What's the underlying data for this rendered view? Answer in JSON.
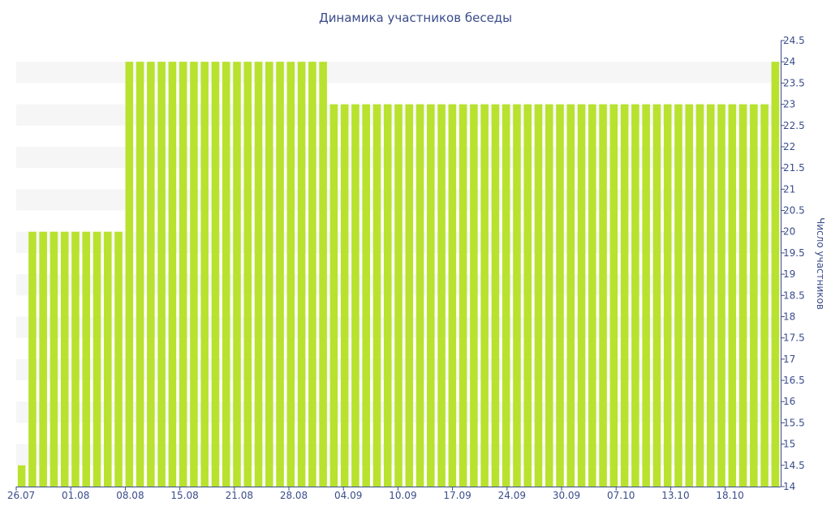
{
  "chart_data": {
    "type": "bar",
    "title": "Динамика участников беседы",
    "xlabel": "",
    "ylabel": "Число участников",
    "ylim": [
      14,
      24.5
    ],
    "y_axis_side": "right",
    "y_ticks": [
      "14",
      "14.5",
      "15",
      "15.5",
      "16",
      "16.5",
      "17",
      "17.5",
      "18",
      "18.5",
      "19",
      "19.5",
      "20",
      "20.5",
      "21",
      "21.5",
      "22",
      "22.5",
      "23",
      "23.5",
      "24",
      "24.5"
    ],
    "x_tick_labels": [
      "26.07",
      "01.08",
      "08.08",
      "15.08",
      "21.08",
      "28.08",
      "04.09",
      "10.09",
      "17.09",
      "24.09",
      "30.09",
      "07.10",
      "13.10",
      "18.10"
    ],
    "grid": "alternating horizontal bands",
    "legend": "none",
    "bar_color": "#b8e22e",
    "band_color": "#f6f6f6",
    "values": [
      14.5,
      20,
      20,
      20,
      20,
      20,
      20,
      20,
      20,
      20,
      24,
      24,
      24,
      24,
      24,
      24,
      24,
      24,
      24,
      24,
      24,
      24,
      24,
      24,
      24,
      24,
      24,
      24,
      24,
      23,
      23,
      23,
      23,
      23,
      23,
      23,
      23,
      23,
      23,
      23,
      23,
      23,
      23,
      23,
      23,
      23,
      23,
      23,
      23,
      23,
      23,
      23,
      23,
      23,
      23,
      23,
      23,
      23,
      23,
      23,
      23,
      23,
      23,
      23,
      23,
      23,
      23,
      23,
      23,
      23,
      24
    ]
  }
}
